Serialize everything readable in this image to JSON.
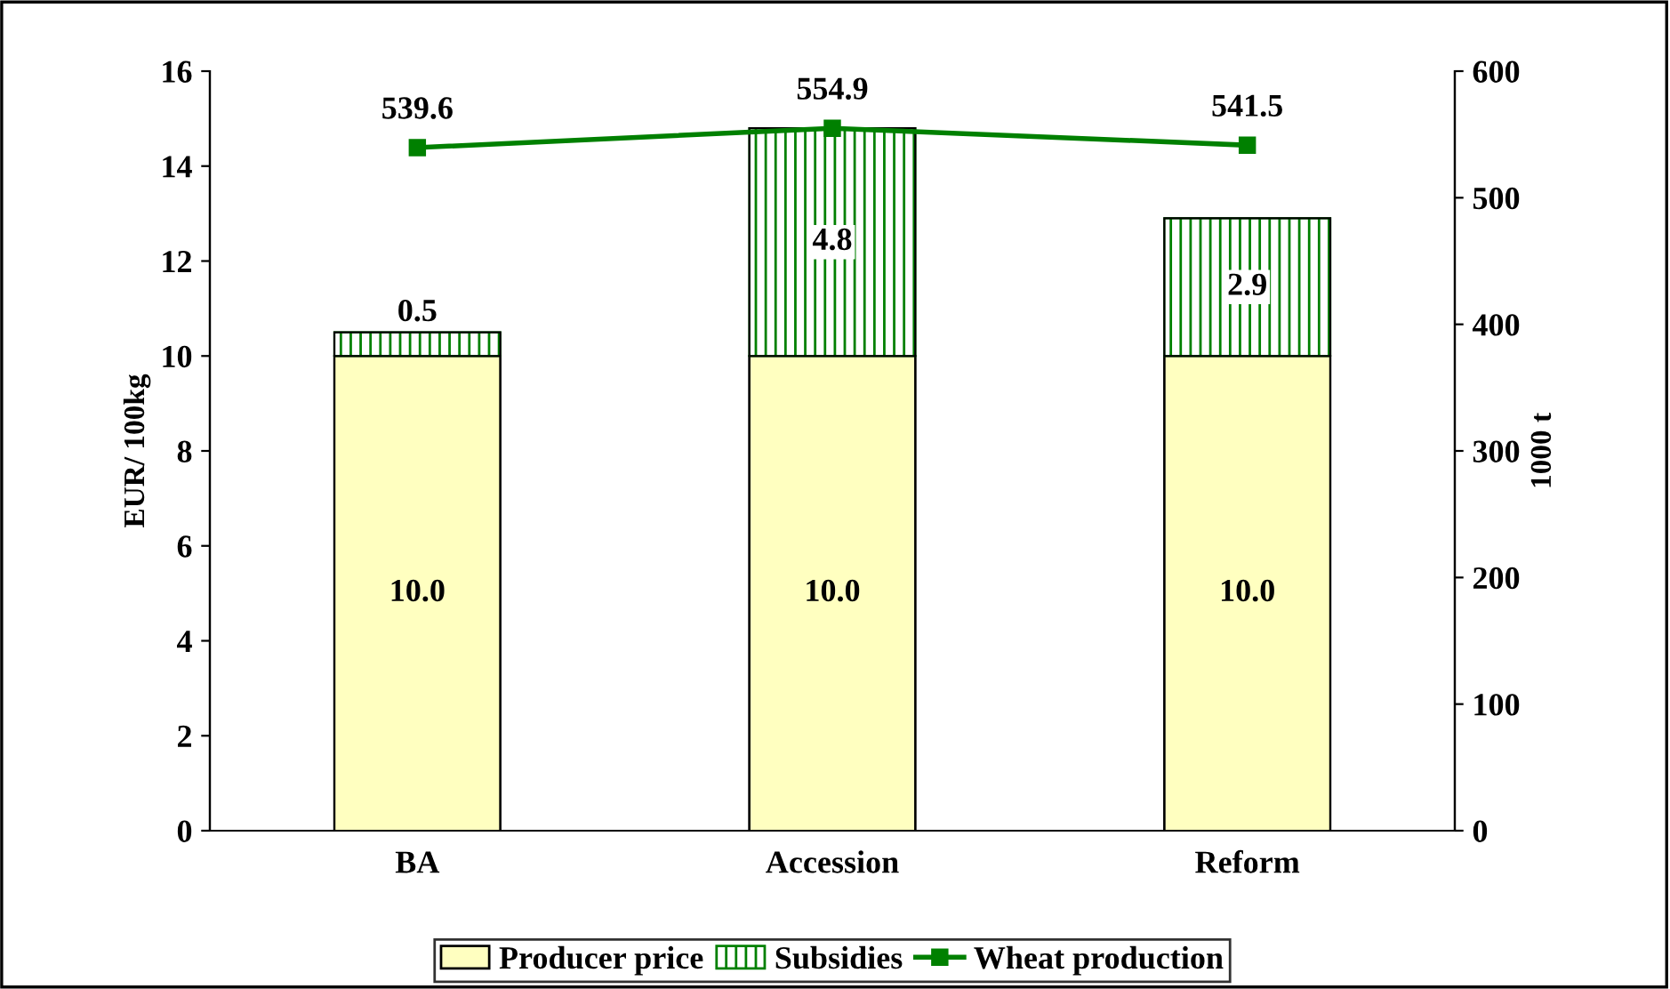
{
  "chart_data": {
    "type": "bar",
    "stacked": true,
    "categories": [
      "BA",
      "Accession",
      "Reform"
    ],
    "series": [
      {
        "name": "Producer price",
        "color": "#ffffc0",
        "values": [
          10.0,
          10.0,
          10.0
        ],
        "value_labels": [
          "10.0",
          "10.0",
          "10.0"
        ]
      },
      {
        "name": "Subsidies",
        "color": "#008000",
        "values": [
          0.5,
          4.8,
          2.9
        ],
        "value_labels": [
          "0.5",
          "4.8",
          "2.9"
        ]
      },
      {
        "name": "Wheat production",
        "type": "line",
        "axis": "y2",
        "color": "#008000",
        "values": [
          539.6,
          554.9,
          541.5
        ],
        "value_labels": [
          "539.6",
          "554.9",
          "541.5"
        ],
        "marker": "square"
      }
    ],
    "ylabel": "EUR/ 100kg",
    "y2label": "1000 t",
    "ylim": [
      0,
      16
    ],
    "yticks": [
      0,
      2,
      4,
      6,
      8,
      10,
      12,
      14,
      16
    ],
    "y2lim": [
      0,
      600
    ],
    "y2ticks": [
      0,
      100,
      200,
      300,
      400,
      500,
      600
    ],
    "legend": "bottom",
    "grid": false
  }
}
